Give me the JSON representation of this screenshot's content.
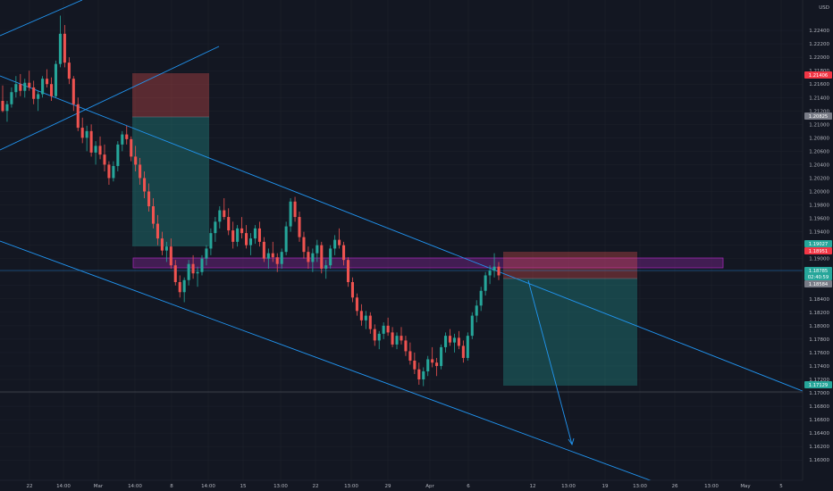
{
  "chart_data": {
    "type": "candlestick",
    "currency": "USD",
    "colors": {
      "background": "#131722",
      "up": "#26a69a",
      "down": "#ef5350",
      "trendline": "#2196f3",
      "zone": "#9c27b0",
      "price_tag": "#26a69a",
      "stop_tag": "#f23645",
      "gray_tag": "#787b86"
    },
    "y_axis": {
      "range": [
        1.1583,
        1.228
      ],
      "ticks": [
        "1.22400",
        "1.22200",
        "1.22000",
        "1.21800",
        "1.21600",
        "1.21400",
        "1.21200",
        "1.21000",
        "1.20800",
        "1.20600",
        "1.20400",
        "1.20200",
        "1.20000",
        "1.19800",
        "1.19600",
        "1.19400",
        "1.19200",
        "1.19000",
        "1.18800",
        "1.18600",
        "1.18400",
        "1.18200",
        "1.18000",
        "1.17800",
        "1.17600",
        "1.17400",
        "1.17200",
        "1.17000",
        "1.16800",
        "1.16600",
        "1.16400",
        "1.16200",
        "1.16000"
      ]
    },
    "x_axis": {
      "ticks": [
        "22",
        "14:00",
        "Mar",
        "14:00",
        "8",
        "14:00",
        "15",
        "13:00",
        "22",
        "13:00",
        "29",
        "Apr",
        "6",
        "12",
        "13:00",
        "19",
        "13:00",
        "26",
        "13:00",
        "May",
        "5"
      ]
    },
    "price_tags": [
      {
        "label": "1.21406",
        "value": 1.21406,
        "style": "stop"
      },
      {
        "label": "1.20825",
        "value": 1.20825,
        "style": "gray"
      },
      {
        "label": "1.19027",
        "value": 1.19027,
        "style": "price"
      },
      {
        "label": "1.18951",
        "value": 1.18951,
        "style": "stop"
      },
      {
        "label": "1.18785",
        "value": 1.18785,
        "style": "price"
      },
      {
        "label": "02:40:59",
        "value": 1.187,
        "style": "price"
      },
      {
        "label": "1.18584",
        "value": 1.18584,
        "style": "gray"
      },
      {
        "label": "1.17129",
        "value": 1.17129,
        "style": "price"
      }
    ],
    "candles": [
      [
        1.2135,
        1.2158,
        1.2118,
        1.212
      ],
      [
        1.212,
        1.2135,
        1.2104,
        1.213
      ],
      [
        1.213,
        1.2155,
        1.2125,
        1.2148
      ],
      [
        1.2148,
        1.2172,
        1.214,
        1.216
      ],
      [
        1.216,
        1.2175,
        1.2142,
        1.215
      ],
      [
        1.215,
        1.2168,
        1.214,
        1.2162
      ],
      [
        1.2162,
        1.218,
        1.215,
        1.2155
      ],
      [
        1.2155,
        1.2165,
        1.213,
        1.2138
      ],
      [
        1.2138,
        1.215,
        1.212,
        1.2145
      ],
      [
        1.2145,
        1.2172,
        1.214,
        1.2168
      ],
      [
        1.2168,
        1.2182,
        1.2155,
        1.216
      ],
      [
        1.216,
        1.217,
        1.2135,
        1.2142
      ],
      [
        1.2142,
        1.2195,
        1.214,
        1.219
      ],
      [
        1.219,
        1.2262,
        1.2185,
        1.2235
      ],
      [
        1.2235,
        1.2248,
        1.2185,
        1.2192
      ],
      [
        1.2192,
        1.22,
        1.216,
        1.2168
      ],
      [
        1.2168,
        1.2172,
        1.212,
        1.213
      ],
      [
        1.213,
        1.214,
        1.209,
        1.2095
      ],
      [
        1.2095,
        1.211,
        1.2072,
        1.208
      ],
      [
        1.208,
        1.2098,
        1.206,
        1.209
      ],
      [
        1.209,
        1.21,
        1.2052,
        1.2058
      ],
      [
        1.2058,
        1.2075,
        1.204,
        1.2068
      ],
      [
        1.2068,
        1.2082,
        1.2048,
        1.2055
      ],
      [
        1.2055,
        1.207,
        1.203,
        1.204
      ],
      [
        1.204,
        1.2045,
        1.201,
        1.202
      ],
      [
        1.202,
        1.2045,
        1.2015,
        1.2038
      ],
      [
        1.2038,
        1.2075,
        1.203,
        1.207
      ],
      [
        1.207,
        1.209,
        1.206,
        1.2085
      ],
      [
        1.2085,
        1.2098,
        1.207,
        1.2078
      ],
      [
        1.2078,
        1.2082,
        1.2045,
        1.2052
      ],
      [
        1.2052,
        1.2068,
        1.203,
        1.204
      ],
      [
        1.204,
        1.205,
        1.201,
        1.202
      ],
      [
        1.202,
        1.203,
        1.199,
        1.2
      ],
      [
        1.2,
        1.2012,
        1.197,
        1.1978
      ],
      [
        1.1978,
        1.199,
        1.1945,
        1.1952
      ],
      [
        1.1952,
        1.1965,
        1.192,
        1.193
      ],
      [
        1.193,
        1.194,
        1.1905,
        1.1912
      ],
      [
        1.1912,
        1.1925,
        1.1895,
        1.1918
      ],
      [
        1.1918,
        1.193,
        1.1885,
        1.189
      ],
      [
        1.189,
        1.1898,
        1.186,
        1.1865
      ],
      [
        1.1865,
        1.1875,
        1.1842,
        1.185
      ],
      [
        1.185,
        1.1872,
        1.1835,
        1.1868
      ],
      [
        1.1868,
        1.1898,
        1.186,
        1.1892
      ],
      [
        1.1892,
        1.1905,
        1.187,
        1.1878
      ],
      [
        1.1878,
        1.1888,
        1.1858,
        1.188
      ],
      [
        1.188,
        1.1905,
        1.1875,
        1.19
      ],
      [
        1.19,
        1.192,
        1.189,
        1.1915
      ],
      [
        1.1915,
        1.1945,
        1.1905,
        1.1938
      ],
      [
        1.1938,
        1.1962,
        1.1925,
        1.1955
      ],
      [
        1.1955,
        1.1978,
        1.1945,
        1.1972
      ],
      [
        1.1972,
        1.199,
        1.1958,
        1.1962
      ],
      [
        1.1962,
        1.1975,
        1.1935,
        1.1942
      ],
      [
        1.1942,
        1.1955,
        1.1915,
        1.1925
      ],
      [
        1.1925,
        1.195,
        1.1918,
        1.1945
      ],
      [
        1.1945,
        1.1962,
        1.193,
        1.1938
      ],
      [
        1.1938,
        1.195,
        1.1915,
        1.192
      ],
      [
        1.192,
        1.1938,
        1.1905,
        1.193
      ],
      [
        1.193,
        1.195,
        1.1922,
        1.1945
      ],
      [
        1.1945,
        1.1955,
        1.1918,
        1.1925
      ],
      [
        1.1925,
        1.1932,
        1.1895,
        1.19
      ],
      [
        1.19,
        1.1915,
        1.1885,
        1.1908
      ],
      [
        1.1908,
        1.1925,
        1.1895,
        1.1902
      ],
      [
        1.1902,
        1.1908,
        1.188,
        1.1892
      ],
      [
        1.1892,
        1.1915,
        1.1885,
        1.191
      ],
      [
        1.191,
        1.1955,
        1.1905,
        1.1948
      ],
      [
        1.1948,
        1.199,
        1.194,
        1.1985
      ],
      [
        1.1985,
        1.1992,
        1.1955,
        1.1962
      ],
      [
        1.1962,
        1.197,
        1.1925,
        1.1932
      ],
      [
        1.1932,
        1.194,
        1.19,
        1.191
      ],
      [
        1.191,
        1.1918,
        1.1885,
        1.1895
      ],
      [
        1.1895,
        1.1915,
        1.188,
        1.1908
      ],
      [
        1.1908,
        1.1928,
        1.1895,
        1.192
      ],
      [
        1.192,
        1.1925,
        1.1878,
        1.1885
      ],
      [
        1.1885,
        1.1898,
        1.187,
        1.189
      ],
      [
        1.189,
        1.192,
        1.1885,
        1.1915
      ],
      [
        1.1915,
        1.1935,
        1.1905,
        1.1928
      ],
      [
        1.1928,
        1.1945,
        1.1915,
        1.192
      ],
      [
        1.192,
        1.1925,
        1.189,
        1.1898
      ],
      [
        1.1898,
        1.1902,
        1.1858,
        1.1865
      ],
      [
        1.1865,
        1.1872,
        1.1835,
        1.1842
      ],
      [
        1.1842,
        1.1848,
        1.1815,
        1.1822
      ],
      [
        1.1822,
        1.1832,
        1.18,
        1.1808
      ],
      [
        1.1808,
        1.1822,
        1.1795,
        1.1815
      ],
      [
        1.1815,
        1.182,
        1.1788,
        1.1795
      ],
      [
        1.1795,
        1.1802,
        1.177,
        1.1778
      ],
      [
        1.1778,
        1.1792,
        1.1765,
        1.1788
      ],
      [
        1.1788,
        1.1805,
        1.178,
        1.18
      ],
      [
        1.18,
        1.1812,
        1.1785,
        1.179
      ],
      [
        1.179,
        1.1798,
        1.1768,
        1.1772
      ],
      [
        1.1772,
        1.179,
        1.1765,
        1.1785
      ],
      [
        1.1785,
        1.1798,
        1.1772,
        1.1778
      ],
      [
        1.1778,
        1.1785,
        1.1755,
        1.1762
      ],
      [
        1.1762,
        1.1775,
        1.1742,
        1.1748
      ],
      [
        1.1748,
        1.176,
        1.1728,
        1.1735
      ],
      [
        1.1735,
        1.1745,
        1.1712,
        1.172
      ],
      [
        1.172,
        1.1738,
        1.171,
        1.1732
      ],
      [
        1.1732,
        1.1755,
        1.1725,
        1.175
      ],
      [
        1.175,
        1.1768,
        1.1738,
        1.1745
      ],
      [
        1.1745,
        1.1752,
        1.1725,
        1.174
      ],
      [
        1.174,
        1.1772,
        1.1735,
        1.1768
      ],
      [
        1.1768,
        1.179,
        1.176,
        1.1785
      ],
      [
        1.1785,
        1.1795,
        1.177,
        1.1775
      ],
      [
        1.1775,
        1.1788,
        1.176,
        1.1782
      ],
      [
        1.1782,
        1.1792,
        1.1765,
        1.177
      ],
      [
        1.177,
        1.1778,
        1.1745,
        1.1752
      ],
      [
        1.1752,
        1.179,
        1.1748,
        1.1785
      ],
      [
        1.1785,
        1.182,
        1.178,
        1.1815
      ],
      [
        1.1815,
        1.1838,
        1.1805,
        1.183
      ],
      [
        1.183,
        1.1858,
        1.1822,
        1.1852
      ],
      [
        1.1852,
        1.188,
        1.1845,
        1.1875
      ],
      [
        1.1875,
        1.189,
        1.1862,
        1.1882
      ],
      [
        1.1882,
        1.1908,
        1.1872,
        1.1888
      ],
      [
        1.1888,
        1.1895,
        1.1868,
        1.1875
      ]
    ]
  }
}
